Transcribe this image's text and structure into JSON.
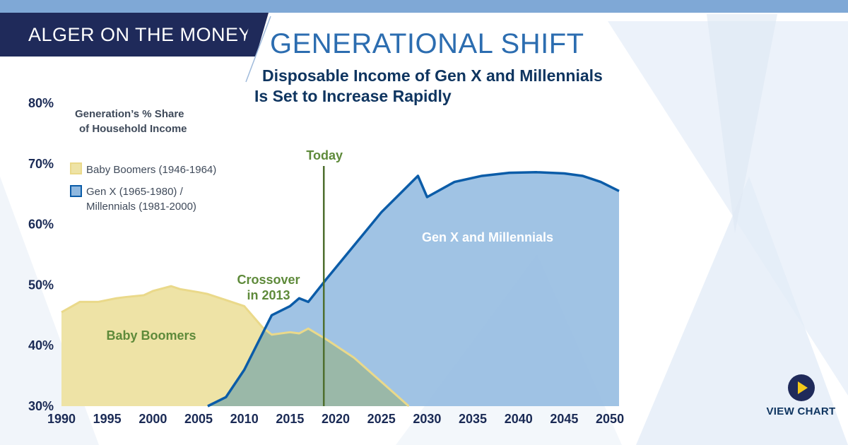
{
  "brand": {
    "tag": "ALGER ON THE MONEY"
  },
  "header": {
    "headline": "GENERATIONAL SHIFT",
    "subtitle_line1": "Disposable Income of Gen X and Millennials",
    "subtitle_line2": "Is Set to Increase Rapidly"
  },
  "cta": {
    "label": "VIEW CHART"
  },
  "colors": {
    "boomer_fill": "#eee3a6",
    "boomer_line": "#ead98a",
    "genx_fill": "#8fb8df",
    "genx_line": "#0b5ca8",
    "overlap_fill": "#9ab8a8",
    "today_line": "#4e6e2e",
    "annotation_green": "#5e8a3a",
    "axis_text": "#1a2a55"
  },
  "chart_data": {
    "type": "area",
    "title": "Generation’s % Share of Household Income",
    "legend_title_line1": "Generation’s % Share",
    "legend_title_line2": "of Household Income",
    "xlabel": "",
    "ylabel": "",
    "xlim": [
      1990,
      2051
    ],
    "ylim": [
      30,
      80
    ],
    "xticks": [
      "1990",
      "1995",
      "2000",
      "2005",
      "2010",
      "2015",
      "2020",
      "2025",
      "2030",
      "2035",
      "2040",
      "2045",
      "2050"
    ],
    "yticks": [
      "30%",
      "40%",
      "50%",
      "60%",
      "70%",
      "80%"
    ],
    "series": [
      {
        "name": "Baby Boomers (1946-1964)",
        "legend_line1": "Baby Boomers (1946-1964)",
        "area_label": "Baby Boomers",
        "x": [
          1990,
          1992,
          1994,
          1996,
          1997,
          1999,
          2000,
          2002,
          2003,
          2005,
          2006,
          2008,
          2010,
          2012,
          2013,
          2015,
          2016,
          2017,
          2019,
          2022,
          2025,
          2028
        ],
        "values": [
          45.5,
          47.2,
          47.2,
          47.8,
          48.0,
          48.3,
          49.0,
          49.8,
          49.3,
          48.8,
          48.5,
          47.5,
          46.5,
          43.0,
          41.8,
          42.2,
          42.0,
          42.8,
          41.0,
          38.0,
          34.0,
          30.0
        ]
      },
      {
        "name": "Gen X (1965-1980) / Millennials (1981-2000)",
        "legend_line1": "Gen X (1965-1980) /",
        "legend_line2": "Millennials (1981-2000)",
        "area_label": "Gen X and Millennials",
        "x": [
          2006,
          2008,
          2010,
          2013,
          2015,
          2016,
          2017,
          2019,
          2022,
          2025,
          2027,
          2029,
          2030,
          2033,
          2036,
          2039,
          2042,
          2045,
          2047,
          2049,
          2051
        ],
        "values": [
          30.0,
          31.5,
          36.0,
          45.0,
          46.5,
          47.8,
          47.2,
          51.0,
          56.5,
          62.0,
          65.0,
          68.0,
          64.5,
          67.0,
          68.0,
          68.5,
          68.6,
          68.4,
          68.0,
          67.0,
          65.5
        ]
      }
    ],
    "annotations": [
      {
        "text": "Today",
        "x": 2018.7
      },
      {
        "line1": "Crossover",
        "line2": "in 2013"
      }
    ]
  }
}
